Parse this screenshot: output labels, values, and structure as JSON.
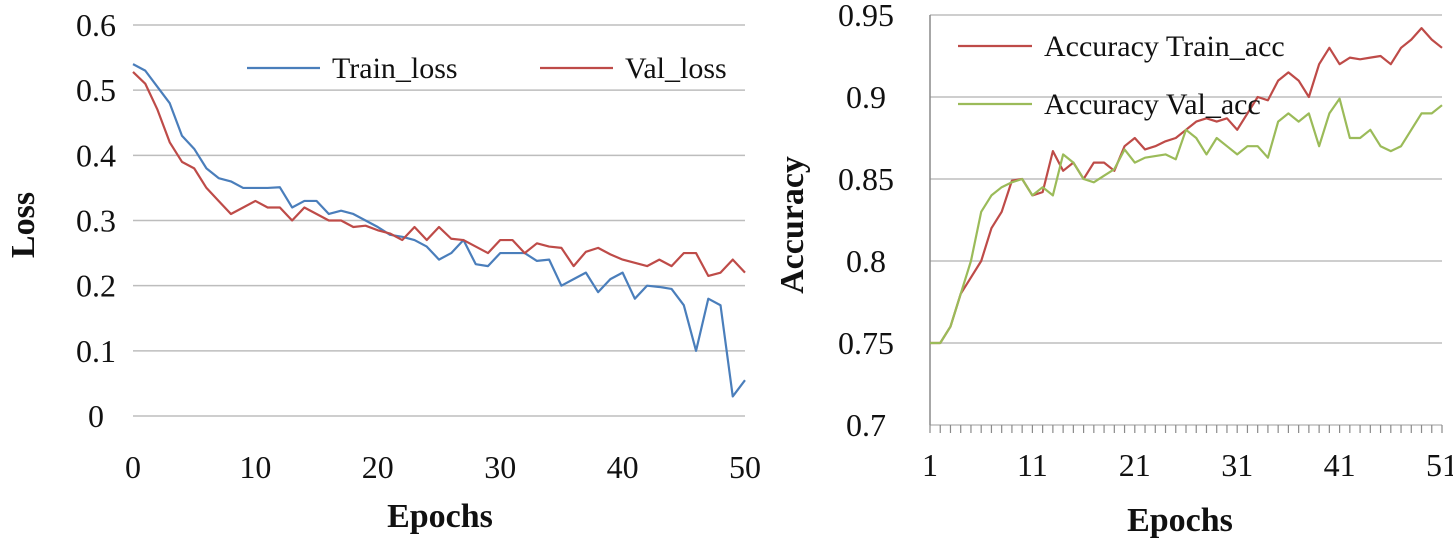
{
  "chart_data": [
    {
      "type": "line",
      "title": "",
      "xlabel": "Epochs",
      "ylabel": "Loss",
      "xlim": [
        0,
        50
      ],
      "ylim": [
        0,
        0.6
      ],
      "xticks": [
        "0",
        "10",
        "20",
        "30",
        "40",
        "50"
      ],
      "yticks": [
        "0",
        "0.1",
        "0.2",
        "0.3",
        "0.4",
        "0.5",
        "0.6"
      ],
      "grid": "horizontal",
      "legend_position": "top-right",
      "x": [
        0,
        1,
        2,
        3,
        4,
        5,
        6,
        7,
        8,
        9,
        10,
        11,
        12,
        13,
        14,
        15,
        16,
        17,
        18,
        19,
        20,
        21,
        22,
        23,
        24,
        25,
        26,
        27,
        28,
        29,
        30,
        31,
        32,
        33,
        34,
        35,
        36,
        37,
        38,
        39,
        40,
        41,
        42,
        43,
        44,
        45,
        46,
        47,
        48,
        49,
        50
      ],
      "series": [
        {
          "name": "Train_loss",
          "color": "#4a7ebb",
          "values": [
            0.54,
            0.53,
            0.505,
            0.48,
            0.43,
            0.41,
            0.38,
            0.365,
            0.36,
            0.35,
            0.35,
            0.35,
            0.351,
            0.32,
            0.33,
            0.33,
            0.31,
            0.315,
            0.31,
            0.3,
            0.29,
            0.278,
            0.275,
            0.27,
            0.26,
            0.24,
            0.25,
            0.27,
            0.233,
            0.23,
            0.25,
            0.25,
            0.25,
            0.238,
            0.24,
            0.2,
            0.21,
            0.22,
            0.19,
            0.21,
            0.22,
            0.18,
            0.2,
            0.198,
            0.195,
            0.17,
            0.1,
            0.18,
            0.17,
            0.03,
            0.055
          ]
        },
        {
          "name": "Val_loss",
          "color": "#be4b48",
          "values": [
            0.528,
            0.51,
            0.47,
            0.42,
            0.39,
            0.38,
            0.35,
            0.33,
            0.31,
            0.32,
            0.33,
            0.32,
            0.32,
            0.3,
            0.32,
            0.31,
            0.3,
            0.3,
            0.29,
            0.292,
            0.285,
            0.28,
            0.27,
            0.29,
            0.27,
            0.29,
            0.272,
            0.27,
            0.26,
            0.25,
            0.27,
            0.27,
            0.25,
            0.265,
            0.26,
            0.258,
            0.23,
            0.252,
            0.258,
            0.248,
            0.24,
            0.235,
            0.23,
            0.24,
            0.23,
            0.25,
            0.25,
            0.215,
            0.22,
            0.24,
            0.22
          ]
        }
      ]
    },
    {
      "type": "line",
      "title": "",
      "xlabel": "Epochs",
      "ylabel": "Accuracy",
      "xlim": [
        1,
        51
      ],
      "ylim": [
        0.7,
        0.95
      ],
      "xticks": [
        "1",
        "11",
        "21",
        "31",
        "41",
        "51"
      ],
      "yticks": [
        "0.7",
        "0.75",
        "0.8",
        "0.85",
        "0.9",
        "0.95"
      ],
      "grid": "horizontal",
      "legend_position": "top-left",
      "x": [
        1,
        2,
        3,
        4,
        5,
        6,
        7,
        8,
        9,
        10,
        11,
        12,
        13,
        14,
        15,
        16,
        17,
        18,
        19,
        20,
        21,
        22,
        23,
        24,
        25,
        26,
        27,
        28,
        29,
        30,
        31,
        32,
        33,
        34,
        35,
        36,
        37,
        38,
        39,
        40,
        41,
        42,
        43,
        44,
        45,
        46,
        47,
        48,
        49,
        50,
        51
      ],
      "series": [
        {
          "name": "Accuracy Train_acc",
          "color": "#be4b48",
          "values": [
            0.75,
            0.75,
            0.76,
            0.78,
            0.79,
            0.8,
            0.82,
            0.83,
            0.849,
            0.85,
            0.84,
            0.842,
            0.867,
            0.855,
            0.86,
            0.85,
            0.86,
            0.86,
            0.855,
            0.87,
            0.875,
            0.868,
            0.87,
            0.873,
            0.875,
            0.88,
            0.885,
            0.887,
            0.885,
            0.887,
            0.88,
            0.89,
            0.9,
            0.898,
            0.91,
            0.915,
            0.91,
            0.9,
            0.92,
            0.93,
            0.92,
            0.924,
            0.923,
            0.924,
            0.925,
            0.92,
            0.93,
            0.935,
            0.942,
            0.935,
            0.93
          ]
        },
        {
          "name": "Accuracy Val_acc",
          "color": "#9bbb59",
          "values": [
            0.75,
            0.75,
            0.76,
            0.78,
            0.8,
            0.83,
            0.84,
            0.845,
            0.848,
            0.85,
            0.84,
            0.845,
            0.84,
            0.865,
            0.86,
            0.85,
            0.848,
            0.852,
            0.856,
            0.868,
            0.86,
            0.863,
            0.864,
            0.865,
            0.862,
            0.88,
            0.875,
            0.865,
            0.875,
            0.87,
            0.865,
            0.87,
            0.87,
            0.863,
            0.885,
            0.89,
            0.885,
            0.89,
            0.87,
            0.89,
            0.899,
            0.875,
            0.875,
            0.88,
            0.87,
            0.867,
            0.87,
            0.88,
            0.89,
            0.89,
            0.895
          ]
        }
      ]
    }
  ]
}
